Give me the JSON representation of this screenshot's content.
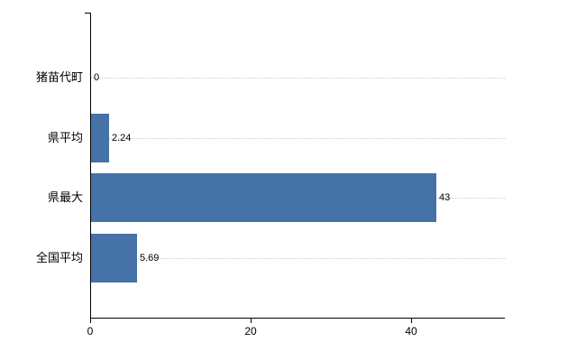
{
  "chart_data": {
    "type": "bar",
    "orientation": "horizontal",
    "title": "",
    "xlabel": "",
    "ylabel": "",
    "categories": [
      "猪苗代町",
      "県平均",
      "県最大",
      "全国平均"
    ],
    "values": [
      0,
      2.24,
      43,
      5.69
    ],
    "value_labels": [
      "0",
      "2.24",
      "43",
      "5.69"
    ],
    "xlim": [
      0,
      52
    ],
    "x_ticks": [
      0,
      20,
      40
    ],
    "x_tick_labels": [
      "0",
      "20",
      "40"
    ],
    "grid": "dotted-horizontal-per-category",
    "legend": "none",
    "colors": {
      "bar": "#4572a7",
      "background": "#ffffff",
      "axis": "#000000",
      "gridline": "#cccccc",
      "text": "#000000"
    }
  }
}
